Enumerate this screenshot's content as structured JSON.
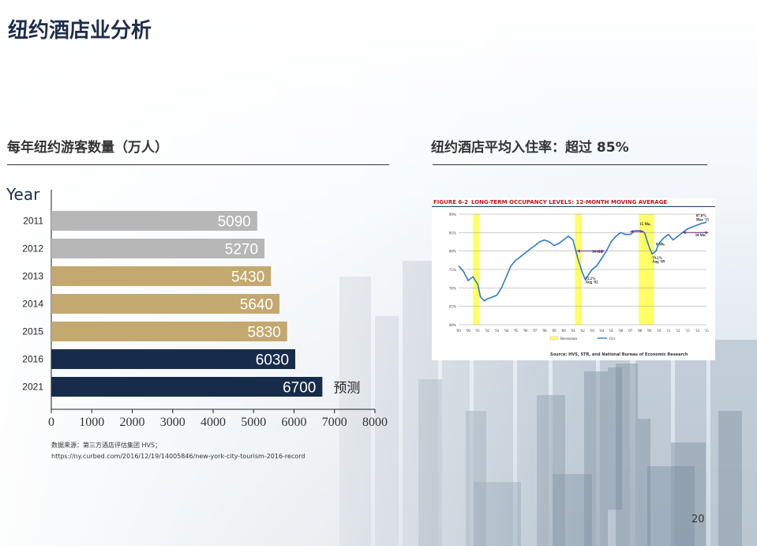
{
  "page": {
    "title": "纽约酒店业分析",
    "page_number": "20",
    "source_line1": "数据来源：第三方酒店评估集团 HVS；",
    "source_line2": "https://ny.curbed.com/2016/12/19/14005846/new-york-city-tourism-2016-record"
  },
  "colors": {
    "gray": "#b7b7b7",
    "gold": "#c3a86f",
    "navy": "#172c4a",
    "occ_line": "#2f7bc6",
    "recession": "#ffff66",
    "arrow": "#7a3a9a"
  },
  "chart_data": [
    {
      "type": "bar",
      "orientation": "horizontal",
      "title": "每年纽约游客数量（万人）",
      "ylabel": "Year",
      "categories": [
        "2011",
        "2012",
        "2013",
        "2014",
        "2015",
        "2016",
        "2021"
      ],
      "values": [
        5090,
        5270,
        5430,
        5640,
        5830,
        6030,
        6700
      ],
      "bar_colors": [
        "gray",
        "gray",
        "gold",
        "gold",
        "gold",
        "navy",
        "navy"
      ],
      "annotations": [
        {
          "category": "2021",
          "text": "预测"
        }
      ],
      "xticks": [
        "0",
        "1000",
        "2000",
        "3000",
        "4000",
        "5000",
        "6000",
        "7000",
        "8000"
      ],
      "xlim": [
        0,
        8000
      ]
    },
    {
      "type": "line",
      "title": "纽约酒店平均入住率：超过 85%",
      "figure_label": "FIGURE 6-2",
      "figure_title": "LONG-TERM OCCUPANCY LEVELS: 12-MONTH MOVING AVERAGE",
      "xticks": [
        "'89",
        "'90",
        "'91",
        "'92",
        "'93",
        "'94",
        "'95",
        "'96",
        "'97",
        "'98",
        "'99",
        "'00",
        "'01",
        "'02",
        "'03",
        "'04",
        "'05",
        "'06",
        "'07",
        "'08",
        "'09",
        "'10",
        "'11",
        "'12",
        "'13",
        "'14",
        "'15"
      ],
      "yticks": [
        "60%",
        "65%",
        "70%",
        "75%",
        "80%",
        "85%",
        "90%"
      ],
      "ylim": [
        60,
        90
      ],
      "xlim": [
        1989,
        2015
      ],
      "series": [
        {
          "name": "Occ",
          "x": [
            1989.0,
            1989.5,
            1990.0,
            1990.5,
            1991.0,
            1991.3,
            1991.7,
            1992.0,
            1992.5,
            1993.0,
            1993.5,
            1994.0,
            1994.5,
            1995.0,
            1995.5,
            1996.0,
            1996.5,
            1997.0,
            1997.5,
            1998.0,
            1998.5,
            1999.0,
            1999.5,
            2000.0,
            2000.5,
            2001.0,
            2001.5,
            2002.0,
            2002.3,
            2002.6,
            2003.0,
            2003.5,
            2004.0,
            2004.5,
            2005.0,
            2005.5,
            2006.0,
            2006.5,
            2007.0,
            2007.5,
            2008.0,
            2008.5,
            2009.0,
            2009.3,
            2009.7,
            2010.0,
            2010.5,
            2011.0,
            2011.5,
            2012.0,
            2012.5,
            2013.0,
            2013.5,
            2014.0,
            2014.5,
            2015.0
          ],
          "y": [
            76,
            74.5,
            72,
            73,
            71,
            67.5,
            66.5,
            67,
            67.5,
            68,
            70,
            73,
            76,
            77.5,
            78.5,
            79.5,
            80.5,
            81.5,
            82.5,
            83,
            82.5,
            81.5,
            82,
            83,
            84,
            83,
            78,
            74,
            72.2,
            73.5,
            75,
            76,
            78,
            80,
            82.5,
            84,
            85,
            84.5,
            84.5,
            85.5,
            85.5,
            85,
            81,
            79.2,
            80,
            82,
            83.5,
            84.5,
            83,
            84,
            85,
            86,
            86.5,
            87,
            87.5,
            87.8
          ]
        }
      ],
      "recessions": [
        [
          1990.5,
          1991.2
        ],
        [
          2001.2,
          2001.9
        ],
        [
          2007.9,
          2009.5
        ]
      ],
      "annotations": [
        {
          "text": "72.2%",
          "x": 2002.3,
          "y": 72.2
        },
        {
          "text": "Aug '02",
          "x": 2002.3,
          "y": 71.2
        },
        {
          "text": "34 Mo.",
          "x": 2003.0,
          "y": 79.5
        },
        {
          "text": "15 Mo.",
          "x": 2008.0,
          "y": 87.0
        },
        {
          "text": "6 Mo.",
          "x": 2009.7,
          "y": 81.5
        },
        {
          "text": "79.2%",
          "x": 2009.3,
          "y": 77.8
        },
        {
          "text": "Aug '09",
          "x": 2009.3,
          "y": 76.8
        },
        {
          "text": "87.8%",
          "x": 2013.9,
          "y": 89.2
        },
        {
          "text": "Mar '15",
          "x": 2013.9,
          "y": 88.2
        },
        {
          "text": "34 Mo.",
          "x": 2013.8,
          "y": 84.0
        }
      ],
      "arrows": [
        {
          "from": [
            2001.4,
            80.0
          ],
          "to": [
            2004.3,
            80.0
          ]
        },
        {
          "from": [
            2007.0,
            85.3
          ],
          "to": [
            2008.4,
            85.3
          ]
        },
        {
          "from": [
            2012.5,
            85.0
          ],
          "to": [
            2015.2,
            85.0
          ]
        }
      ],
      "legend": [
        {
          "label": "Recessions",
          "kind": "box"
        },
        {
          "label": "Occ",
          "kind": "line"
        }
      ],
      "source": "Source: HVS, STR, and National Bureau of Economic Research"
    }
  ]
}
